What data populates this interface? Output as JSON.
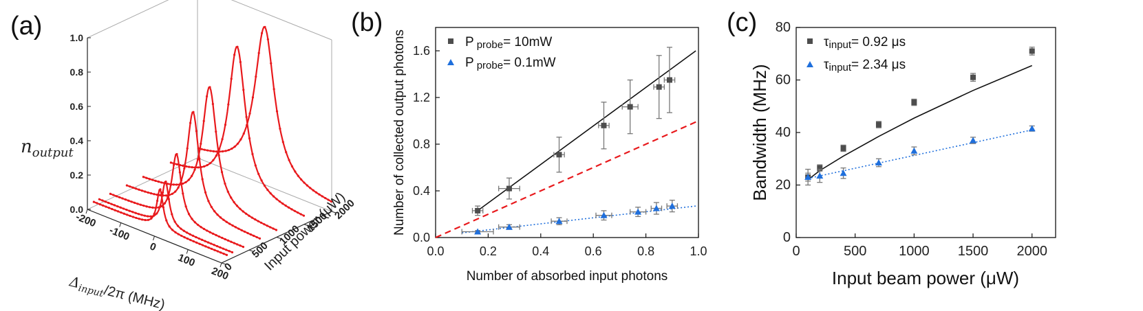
{
  "panel_labels": [
    "(a)",
    "(b)",
    "(c)"
  ],
  "chart_data": [
    {
      "type": "line",
      "panel": "(a)",
      "zlabel": "n_output",
      "zlabel_base": "n",
      "zlabel_sub": "output",
      "xlabel": "Δinput /2π (MHz)",
      "xlabel_base": "Δ",
      "xlabel_sub": "input",
      "xlabel_rest": "/2π (MHz)",
      "ylabel": "Input power (μW)",
      "z_ticks": [
        0.0,
        0.2,
        0.4,
        0.6,
        0.8,
        1.0
      ],
      "z_tick_labels": [
        "0.0",
        "0.2",
        "0.4",
        "0.6",
        "0.8",
        "1.0"
      ],
      "x_ticks": [
        -200,
        -100,
        0,
        100,
        200
      ],
      "x_tick_labels": [
        "-200",
        "-100",
        "0",
        "100",
        "200"
      ],
      "y_ticks": [
        0,
        500,
        1000,
        1500,
        2000
      ],
      "y_tick_labels": [
        "0",
        "500",
        "1000",
        "1500",
        "2000"
      ],
      "xlim": [
        -200,
        200
      ],
      "ylim": [
        0,
        2000
      ],
      "zlim": [
        0,
        1
      ],
      "series": [
        {
          "input_power": 100,
          "peak": 0.26,
          "linewidth": 23
        },
        {
          "input_power": 200,
          "peak": 0.29,
          "linewidth": 26
        },
        {
          "input_power": 400,
          "peak": 0.42,
          "linewidth": 34
        },
        {
          "input_power": 700,
          "peak": 0.62,
          "linewidth": 43
        },
        {
          "input_power": 1000,
          "peak": 0.72,
          "linewidth": 51
        },
        {
          "input_power": 1500,
          "peak": 0.88,
          "linewidth": 61
        },
        {
          "input_power": 2000,
          "peak": 0.92,
          "linewidth": 71
        }
      ],
      "color": "#e8191c"
    },
    {
      "type": "scatter",
      "panel": "(b)",
      "xlabel": "Number of absorbed input photons",
      "ylabel": "Number of collected output photons",
      "xlim": [
        0,
        1.0
      ],
      "ylim": [
        0,
        1.8
      ],
      "x_ticks": [
        0.0,
        0.2,
        0.4,
        0.6,
        0.8,
        1.0
      ],
      "x_tick_labels": [
        "0.0",
        "0.2",
        "0.4",
        "0.6",
        "0.8",
        "1.0"
      ],
      "y_ticks": [
        0.0,
        0.4,
        0.8,
        1.2,
        1.6
      ],
      "y_tick_labels": [
        "0.0",
        "0.4",
        "0.8",
        "1.2",
        "1.6"
      ],
      "series": [
        {
          "name": "P probe= 10mW",
          "legend_prefix": "P",
          "legend_sub": "probe",
          "legend_value": "=  10mW",
          "marker": "square",
          "color": "#4d4d4d",
          "x": [
            0.16,
            0.28,
            0.47,
            0.64,
            0.74,
            0.85,
            0.89
          ],
          "y": [
            0.23,
            0.42,
            0.71,
            0.96,
            1.12,
            1.29,
            1.35
          ],
          "xerr": [
            0.02,
            0.04,
            0.02,
            0.02,
            0.03,
            0.02,
            0.02
          ],
          "yerr": [
            0.04,
            0.09,
            0.15,
            0.2,
            0.23,
            0.27,
            0.28
          ],
          "fit": {
            "x": [
              0.16,
              0.99
            ],
            "y": [
              0.23,
              1.6
            ],
            "style": "solid",
            "color": "#111111"
          }
        },
        {
          "name": "P probe= 0.1mW",
          "legend_prefix": "P",
          "legend_sub": "probe",
          "legend_value": "=  0.1mW",
          "marker": "triangle",
          "color": "#1f6fdc",
          "x": [
            0.16,
            0.28,
            0.47,
            0.64,
            0.77,
            0.84,
            0.9
          ],
          "y": [
            0.05,
            0.09,
            0.14,
            0.19,
            0.22,
            0.25,
            0.27
          ],
          "xerr": [
            0.06,
            0.04,
            0.03,
            0.03,
            0.03,
            0.02,
            0.02
          ],
          "yerr": [
            0.01,
            0.02,
            0.03,
            0.04,
            0.04,
            0.05,
            0.05
          ],
          "fit": {
            "x": [
              0.1,
              0.99
            ],
            "y": [
              0.04,
              0.27
            ],
            "style": "dotted",
            "color": "#1f6fdc"
          }
        }
      ],
      "reference_line": {
        "x": [
          0,
          1.0
        ],
        "y": [
          0,
          1.0
        ],
        "style": "dashed",
        "color": "#e8191c"
      }
    },
    {
      "type": "scatter",
      "panel": "(c)",
      "xlabel": "Input beam power (μW)",
      "ylabel": "Bandwidth (MHz)",
      "xlim": [
        0,
        2200
      ],
      "ylim": [
        0,
        80
      ],
      "x_ticks": [
        0,
        500,
        1000,
        1500,
        2000
      ],
      "x_tick_labels": [
        "0",
        "500",
        "1000",
        "1500",
        "2000"
      ],
      "y_ticks": [
        0,
        20,
        40,
        60,
        80
      ],
      "y_tick_labels": [
        "0",
        "20",
        "40",
        "60",
        "80"
      ],
      "series": [
        {
          "name": "τinput= 0.92 μs",
          "legend_prefix": "τ",
          "legend_sub": "input",
          "legend_value": "=  0.92 μs",
          "marker": "square",
          "color": "#4d4d4d",
          "x": [
            100,
            200,
            400,
            700,
            1000,
            1500,
            2000
          ],
          "y": [
            23,
            26.5,
            34,
            43,
            51.5,
            61,
            71
          ],
          "yerr": [
            1.5,
            1.2,
            1.2,
            1.2,
            1.2,
            1.5,
            1.5
          ],
          "fit": {
            "x": [
              100,
              200,
              400,
              700,
              1000,
              1500,
              2000
            ],
            "y": [
              22,
              25.5,
              31,
              38.5,
              45.5,
              56,
              65.5
            ],
            "style": "solid",
            "color": "#111111"
          }
        },
        {
          "name": "τinput= 2.34 μs",
          "legend_prefix": "τ",
          "legend_sub": "input",
          "legend_value": "=  2.34 μs",
          "marker": "triangle",
          "color": "#1f6fdc",
          "x": [
            100,
            200,
            400,
            700,
            1000,
            1500,
            2000
          ],
          "y": [
            23,
            23.5,
            24.5,
            28.5,
            33,
            37,
            41.5
          ],
          "yerr": [
            3,
            2.5,
            2,
            1.5,
            1.5,
            1.2,
            1
          ],
          "fit": {
            "x": [
              100,
              2000
            ],
            "y": [
              22.5,
              41
            ],
            "style": "dotted",
            "color": "#1f6fdc"
          }
        }
      ]
    }
  ]
}
